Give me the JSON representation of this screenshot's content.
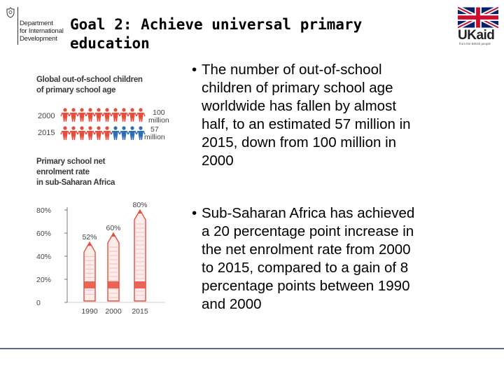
{
  "header": {
    "org_lines": [
      "Department",
      "for International",
      "Development"
    ],
    "title_line1": "Goal 2: Achieve universal primary",
    "title_line2": "education",
    "ukaid_logo_text": "UKaid",
    "ukaid_tagline": "from the British people"
  },
  "infographic": {
    "figure1": {
      "title_line1": "Global out-of-school children",
      "title_line2": "of primary school age",
      "rows": [
        {
          "year": "2000",
          "value_line1": "100",
          "value_line2": "million",
          "value_millions": 100
        },
        {
          "year": "2015",
          "value_line1": "57",
          "value_line2": "million",
          "value_millions": 57
        }
      ],
      "colors": {
        "red_figure": "#e74c3c",
        "blue_figure": "#2e6db4"
      }
    },
    "figure2": {
      "title_line1": "Primary school net",
      "title_line2": "enrolment rate",
      "title_line3": "in sub-Saharan Africa"
    }
  },
  "chart_data": {
    "type": "bar",
    "title": "Primary school net enrolment rate in sub-Saharan Africa",
    "categories": [
      "1990",
      "2000",
      "2015"
    ],
    "values": [
      52,
      60,
      80
    ],
    "data_labels": [
      "52%",
      "60%",
      "80%"
    ],
    "y_ticks": [
      "80%",
      "60%",
      "40%",
      "20%",
      "0"
    ],
    "ylim": [
      0,
      80
    ],
    "bar_color": "#e74c3c"
  },
  "bullets": [
    {
      "marker": "•",
      "lines": [
        "The number of out-of-school",
        "children of primary school age",
        "worldwide has fallen by almost",
        "half, to an estimated 57 million in",
        "2015, down from 100 million in",
        "2000"
      ]
    },
    {
      "marker": "•",
      "lines": [
        "Sub-Saharan Africa has achieved",
        "a 20 percentage point increase in",
        "the net enrolment rate from 2000",
        "to 2015, compared to a gain of 8",
        "percentage points between 1990",
        "and 2000"
      ]
    }
  ]
}
